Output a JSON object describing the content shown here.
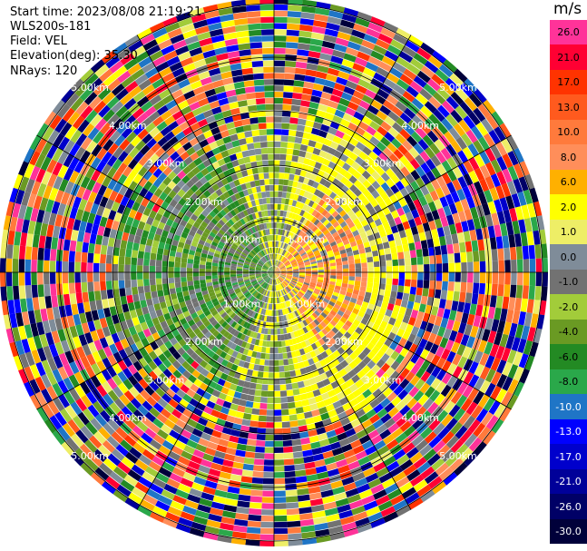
{
  "header": {
    "start_time": "Start time: 2023/08/08 21:19:21",
    "instrument": "WLS200s-181",
    "field": "Field: VEL",
    "elevation": "Elevation(deg): 35.30",
    "nrays": "NRays: 120"
  },
  "range_rings": {
    "unit_suffix": "km",
    "labels": [
      "1.00km",
      "2.00km",
      "3.00km",
      "4.00km",
      "5.00km"
    ]
  },
  "colorbar": {
    "unit": "m/s",
    "bins": [
      {
        "label": "26.0",
        "color": "#ff3399",
        "text": "#000000"
      },
      {
        "label": "21.0",
        "color": "#ff0033",
        "text": "#000000"
      },
      {
        "label": "17.0",
        "color": "#ff3300",
        "text": "#000000"
      },
      {
        "label": "13.0",
        "color": "#ff5a1e",
        "text": "#000000"
      },
      {
        "label": "10.0",
        "color": "#ff7a3c",
        "text": "#000000"
      },
      {
        "label": "8.0",
        "color": "#ff8e5a",
        "text": "#000000"
      },
      {
        "label": "6.0",
        "color": "#ffb000",
        "text": "#000000"
      },
      {
        "label": "2.0",
        "color": "#ffff00",
        "text": "#000000"
      },
      {
        "label": "1.0",
        "color": "#eeee66",
        "text": "#000000"
      },
      {
        "label": "0.0",
        "color": "#7f8c99",
        "text": "#000000"
      },
      {
        "label": "-1.0",
        "color": "#727272",
        "text": "#000000"
      },
      {
        "label": "-2.0",
        "color": "#a2cc3a",
        "text": "#000000"
      },
      {
        "label": "-4.0",
        "color": "#6a9a23",
        "text": "#000000"
      },
      {
        "label": "-6.0",
        "color": "#238a23",
        "text": "#000000"
      },
      {
        "label": "-8.0",
        "color": "#2aa84a",
        "text": "#000000"
      },
      {
        "label": "-10.0",
        "color": "#1f75c6",
        "text": "#ffffff"
      },
      {
        "label": "-13.0",
        "color": "#0000ff",
        "text": "#ffffff"
      },
      {
        "label": "-17.0",
        "color": "#0000cc",
        "text": "#ffffff"
      },
      {
        "label": "-21.0",
        "color": "#000099",
        "text": "#ffffff"
      },
      {
        "label": "-26.0",
        "color": "#000066",
        "text": "#ffffff"
      },
      {
        "label": "-30.0",
        "color": "#00003a",
        "text": "#ffffff"
      }
    ]
  }
}
